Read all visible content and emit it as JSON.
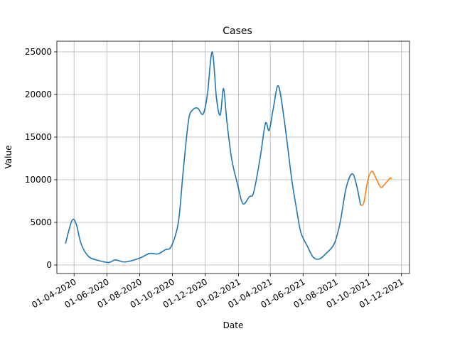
{
  "chart_data": {
    "type": "line",
    "title": "Cases",
    "xlabel": "Date",
    "ylabel": "Value",
    "x": [
      "2020-03-16",
      "2020-03-28",
      "2020-04-05",
      "2020-04-14",
      "2020-04-28",
      "2020-05-18",
      "2020-06-05",
      "2020-06-17",
      "2020-07-05",
      "2020-08-01",
      "2020-08-19",
      "2020-09-04",
      "2020-09-18",
      "2020-09-29",
      "2020-10-12",
      "2020-10-21",
      "2020-10-31",
      "2020-11-08",
      "2020-11-17",
      "2020-11-27",
      "2020-12-05",
      "2020-12-14",
      "2020-12-22",
      "2020-12-29",
      "2021-01-04",
      "2021-01-10",
      "2021-01-19",
      "2021-01-30",
      "2021-02-09",
      "2021-02-21",
      "2021-03-01",
      "2021-03-13",
      "2021-03-23",
      "2021-03-30",
      "2021-04-07",
      "2021-04-16",
      "2021-04-27",
      "2021-05-11",
      "2021-05-20",
      "2021-05-28",
      "2021-06-09",
      "2021-06-20",
      "2021-07-01",
      "2021-07-13",
      "2021-07-29",
      "2021-08-09",
      "2021-08-20",
      "2021-08-31",
      "2021-09-08",
      "2021-09-16",
      "2021-09-22",
      "2021-09-29",
      "2021-10-07",
      "2021-10-16",
      "2021-10-24",
      "2021-11-03",
      "2021-11-10",
      "2021-11-13"
    ],
    "series": [
      {
        "color": "#1f77b4",
        "values": [
          2500,
          5200,
          4800,
          2500,
          1000,
          500,
          300,
          600,
          350,
          800,
          1350,
          1300,
          1800,
          2200,
          5000,
          11000,
          17000,
          18200,
          18400,
          17700,
          20000,
          25000,
          19500,
          17600,
          20700,
          17000,
          12500,
          9500,
          7200,
          8000,
          8500,
          12500,
          16600,
          15800,
          18500,
          21000,
          17000,
          10000,
          6500,
          3800,
          2200,
          900,
          700,
          1300,
          2500,
          5000,
          9000,
          10700,
          9500,
          7000,
          null,
          null,
          null,
          null,
          null,
          null,
          null,
          null
        ]
      },
      {
        "color": "#ff7f0e",
        "values": [
          null,
          null,
          null,
          null,
          null,
          null,
          null,
          null,
          null,
          null,
          null,
          null,
          null,
          null,
          null,
          null,
          null,
          null,
          null,
          null,
          null,
          null,
          null,
          null,
          null,
          null,
          null,
          null,
          null,
          null,
          null,
          null,
          null,
          null,
          null,
          null,
          null,
          null,
          null,
          null,
          null,
          null,
          null,
          null,
          null,
          null,
          null,
          null,
          null,
          7000,
          7300,
          9800,
          11000,
          10000,
          9100,
          9700,
          10200,
          10100
        ]
      }
    ],
    "xlim": [
      "2020-02-29",
      "2021-12-16"
    ],
    "xticks": [
      {
        "value": "2020-04-01",
        "label": "01-04-2020"
      },
      {
        "value": "2020-06-01",
        "label": "01-06-2020"
      },
      {
        "value": "2020-08-01",
        "label": "01-08-2020"
      },
      {
        "value": "2020-10-01",
        "label": "01-10-2020"
      },
      {
        "value": "2020-12-01",
        "label": "01-12-2020"
      },
      {
        "value": "2021-02-01",
        "label": "01-02-2021"
      },
      {
        "value": "2021-04-01",
        "label": "01-04-2021"
      },
      {
        "value": "2021-06-01",
        "label": "01-06-2021"
      },
      {
        "value": "2021-08-01",
        "label": "01-08-2021"
      },
      {
        "value": "2021-10-01",
        "label": "01-10-2021"
      },
      {
        "value": "2021-12-01",
        "label": "01-12-2021"
      }
    ],
    "ylim": [
      -1000,
      26250
    ],
    "yticks": [
      0,
      5000,
      10000,
      15000,
      20000,
      25000
    ],
    "grid": true
  }
}
